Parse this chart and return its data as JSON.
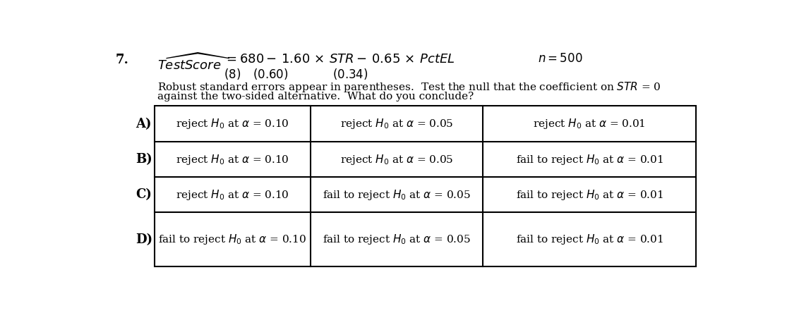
{
  "question_number": "7.",
  "n_label": "$n = 500$",
  "instruction_line1": "Robust standard errors appear in parentheses.  Test the null that the coefficient on $STR$ = 0",
  "instruction_line2": "against the two-sided alternative.  What do you conclude?",
  "options": [
    "A)",
    "B)",
    "C)",
    "D)"
  ],
  "col1": [
    "reject $H_0$ at $\\alpha$ = 0.10",
    "reject $H_0$ at $\\alpha$ = 0.10",
    "reject $H_0$ at $\\alpha$ = 0.10",
    "fail to reject $H_0$ at $\\alpha$ = 0.10"
  ],
  "col2": [
    "reject $H_0$ at $\\alpha$ = 0.05",
    "reject $H_0$ at $\\alpha$ = 0.05",
    "fail to reject $H_0$ at $\\alpha$ = 0.05",
    "fail to reject $H_0$ at $\\alpha$ = 0.05"
  ],
  "col3": [
    "reject $H_0$ at $\\alpha$ = 0.01",
    "fail to reject $H_0$ at $\\alpha$ = 0.01",
    "fail to reject $H_0$ at $\\alpha$ = 0.01",
    "fail to reject $H_0$ at $\\alpha$ = 0.01"
  ],
  "bg_color": "#ffffff",
  "text_color": "#000000",
  "eq_fontsize": 13,
  "label_fontsize": 13,
  "body_fontsize": 11,
  "table_fontsize": 11,
  "small_fontsize": 11
}
